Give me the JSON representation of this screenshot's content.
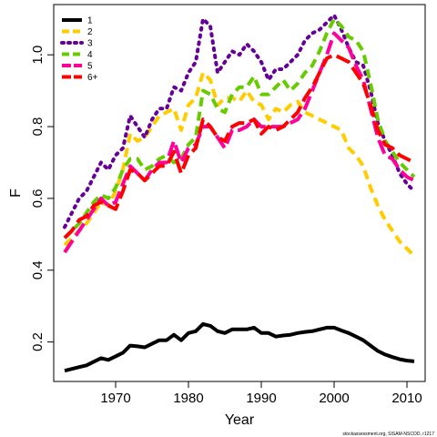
{
  "chart_data": {
    "type": "line",
    "xlabel": "Year",
    "ylabel": "F",
    "xlim": [
      1961.5,
      2012.5
    ],
    "ylim": [
      0.09,
      1.14
    ],
    "xticks": [
      1970,
      1980,
      1990,
      2000,
      2010
    ],
    "xtick_labels": [
      "1970",
      "1980",
      "1990",
      "2000",
      "2010"
    ],
    "yticks": [
      0.2,
      0.4,
      0.6,
      0.8,
      1.0
    ],
    "ytick_labels": [
      "0.2",
      "0.4",
      "0.6",
      "0.8",
      "1.0"
    ],
    "grid": false,
    "legend_position": "top-left",
    "credit": "stockassessment.org, SISAM-NSCOD, r1217",
    "x": [
      1963,
      1964,
      1965,
      1966,
      1967,
      1968,
      1969,
      1970,
      1971,
      1972,
      1973,
      1974,
      1975,
      1976,
      1977,
      1978,
      1979,
      1980,
      1981,
      1982,
      1983,
      1984,
      1985,
      1986,
      1987,
      1988,
      1989,
      1990,
      1991,
      1992,
      1993,
      1994,
      1995,
      1996,
      1997,
      1998,
      1999,
      2000,
      2001,
      2002,
      2003,
      2004,
      2005,
      2006,
      2007,
      2008,
      2009,
      2010,
      2011
    ],
    "series": [
      {
        "name": "1",
        "color": "#000000",
        "dash": "solid",
        "values": [
          0.12,
          0.125,
          0.13,
          0.135,
          0.145,
          0.155,
          0.15,
          0.16,
          0.17,
          0.19,
          0.188,
          0.185,
          0.195,
          0.205,
          0.205,
          0.22,
          0.205,
          0.225,
          0.23,
          0.25,
          0.245,
          0.23,
          0.225,
          0.235,
          0.235,
          0.235,
          0.24,
          0.225,
          0.225,
          0.215,
          0.218,
          0.22,
          0.225,
          0.228,
          0.23,
          0.235,
          0.24,
          0.24,
          0.232,
          0.225,
          0.215,
          0.205,
          0.19,
          0.175,
          0.165,
          0.158,
          0.152,
          0.148,
          0.146
        ]
      },
      {
        "name": "2",
        "color": "#FFCC00",
        "dash": "dash",
        "values": [
          0.47,
          0.49,
          0.51,
          0.53,
          0.56,
          0.59,
          0.58,
          0.62,
          0.68,
          0.78,
          0.76,
          0.77,
          0.8,
          0.83,
          0.84,
          0.85,
          0.79,
          0.86,
          0.88,
          0.95,
          0.93,
          0.86,
          0.88,
          0.88,
          0.87,
          0.9,
          0.87,
          0.86,
          0.82,
          0.85,
          0.84,
          0.86,
          0.87,
          0.84,
          0.83,
          0.82,
          0.81,
          0.8,
          0.79,
          0.74,
          0.72,
          0.69,
          0.63,
          0.58,
          0.54,
          0.51,
          0.48,
          0.46,
          0.44
        ]
      },
      {
        "name": "3",
        "color": "#660099",
        "dash": "dot",
        "values": [
          0.52,
          0.56,
          0.6,
          0.62,
          0.66,
          0.7,
          0.68,
          0.72,
          0.74,
          0.83,
          0.8,
          0.77,
          0.82,
          0.85,
          0.85,
          0.91,
          0.9,
          0.95,
          0.98,
          1.1,
          1.08,
          0.95,
          0.98,
          1.01,
          1.0,
          1.03,
          1.01,
          0.98,
          0.93,
          0.96,
          0.96,
          0.98,
          1.0,
          1.04,
          1.06,
          1.07,
          1.09,
          1.11,
          1.07,
          1.02,
          0.98,
          0.97,
          0.9,
          0.81,
          0.76,
          0.72,
          0.67,
          0.64,
          0.62
        ]
      },
      {
        "name": "4",
        "color": "#66CC00",
        "dash": "dash",
        "values": [
          0.49,
          0.51,
          0.53,
          0.56,
          0.59,
          0.61,
          0.6,
          0.63,
          0.68,
          0.71,
          0.71,
          0.68,
          0.69,
          0.71,
          0.72,
          0.7,
          0.71,
          0.75,
          0.77,
          0.9,
          0.89,
          0.85,
          0.84,
          0.89,
          0.91,
          0.91,
          0.94,
          0.89,
          0.89,
          0.91,
          0.93,
          0.9,
          0.92,
          0.95,
          0.97,
          1.01,
          1.06,
          1.1,
          1.08,
          1.05,
          1.04,
          1.01,
          0.92,
          0.82,
          0.76,
          0.73,
          0.7,
          0.68,
          0.66
        ]
      },
      {
        "name": "5",
        "color": "#FF0099",
        "dash": "longdash",
        "values": [
          0.45,
          0.48,
          0.51,
          0.54,
          0.57,
          0.6,
          0.58,
          0.59,
          0.64,
          0.69,
          0.67,
          0.65,
          0.68,
          0.7,
          0.7,
          0.76,
          0.7,
          0.74,
          0.75,
          0.8,
          0.8,
          0.77,
          0.74,
          0.79,
          0.79,
          0.8,
          0.82,
          0.8,
          0.8,
          0.8,
          0.8,
          0.81,
          0.82,
          0.85,
          0.9,
          0.95,
          1.0,
          1.06,
          1.04,
          1.02,
          0.97,
          0.93,
          0.85,
          0.77,
          0.72,
          0.71,
          0.68,
          0.66,
          0.65
        ]
      },
      {
        "name": "6+",
        "color": "#FF0000",
        "dash": "longdash",
        "values": [
          0.49,
          0.51,
          0.54,
          0.55,
          0.58,
          0.59,
          0.58,
          0.57,
          0.62,
          0.68,
          0.67,
          0.65,
          0.67,
          0.69,
          0.69,
          0.73,
          0.67,
          0.72,
          0.74,
          0.82,
          0.8,
          0.77,
          0.76,
          0.8,
          0.81,
          0.81,
          0.82,
          0.78,
          0.8,
          0.79,
          0.8,
          0.82,
          0.84,
          0.88,
          0.91,
          0.95,
          0.99,
          1.0,
          0.99,
          0.98,
          0.95,
          0.92,
          0.86,
          0.79,
          0.75,
          0.74,
          0.72,
          0.71,
          0.7
        ]
      }
    ]
  }
}
